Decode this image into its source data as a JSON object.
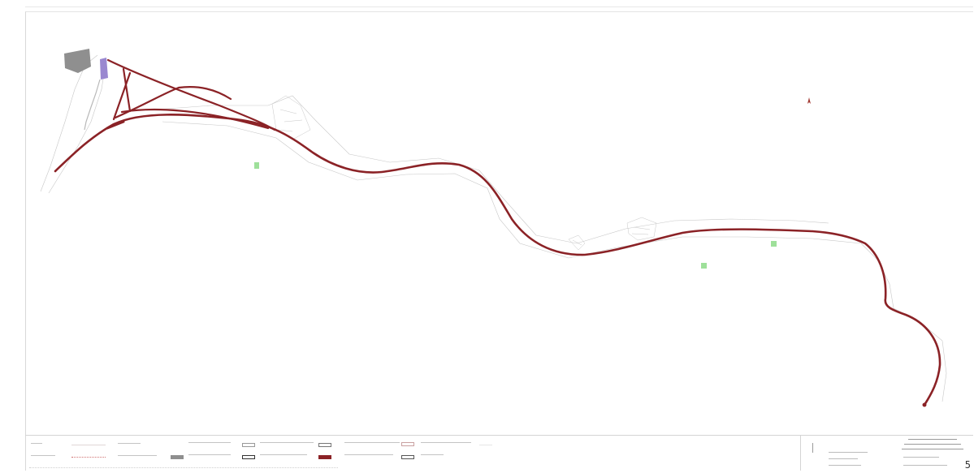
{
  "map": {
    "route_color": "#8b2226",
    "terrain_color": "#c7c7c7",
    "green_area_color": "#9ee09a",
    "building_color": "#8f8f8f",
    "platform_color": "#9a88d0",
    "north_arrow_icon": "north-arrow-icon"
  },
  "legend": {
    "items": [
      {
        "label": "",
        "swatch": "thin-line"
      },
      {
        "label": "",
        "swatch": "dotted-red"
      },
      {
        "label": "",
        "swatch": "none"
      },
      {
        "label": "",
        "swatch": "none"
      },
      {
        "label": "",
        "swatch": "white-box"
      },
      {
        "label": "",
        "swatch": "grey-box"
      },
      {
        "label": "",
        "swatch": "white-box"
      },
      {
        "label": "",
        "swatch": "black-box"
      },
      {
        "label": "",
        "swatch": "white-box"
      },
      {
        "label": "",
        "swatch": "red-box"
      },
      {
        "label": "",
        "swatch": "grey-line"
      },
      {
        "label": "",
        "swatch": "faint-line"
      }
    ]
  },
  "title_block": {
    "lines": [
      "",
      "",
      "",
      ""
    ]
  },
  "sheet_number": "5"
}
